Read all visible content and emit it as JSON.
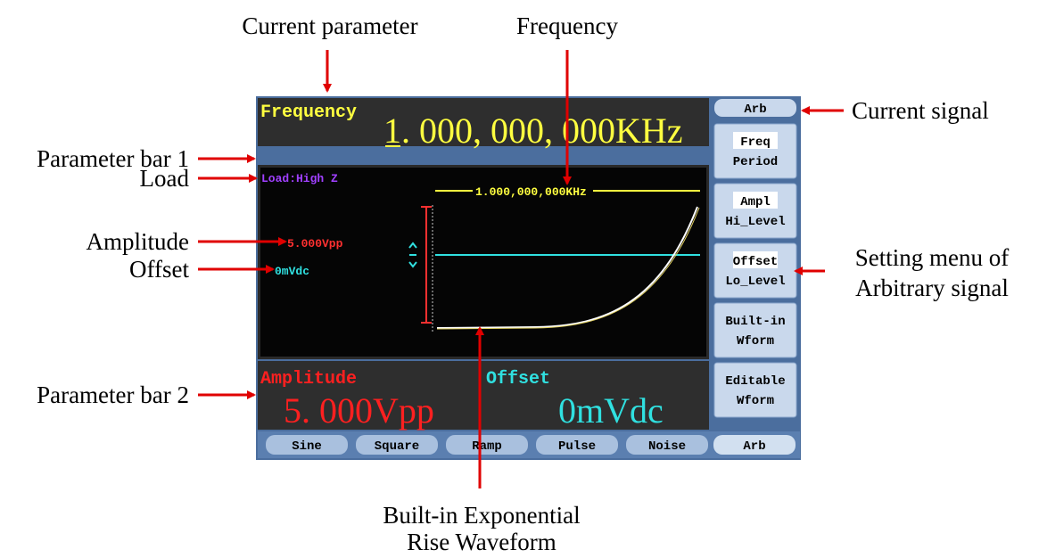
{
  "annotations": {
    "current_parameter": "Current parameter",
    "frequency": "Frequency",
    "parameter_bar_1": "Parameter bar 1",
    "load": "Load",
    "amplitude": "Amplitude",
    "offset": "Offset",
    "parameter_bar_2": "Parameter bar 2",
    "current_signal": "Current signal",
    "setting_menu": [
      "Setting menu of",
      "Arbitrary signal"
    ],
    "waveform": [
      "Built-in Exponential",
      "Rise Waveform"
    ]
  },
  "screen": {
    "parameter_bar_1": {
      "label": "Frequency",
      "value": "1. 000, 000, 000KHz"
    },
    "load": "Load:High Z",
    "wave": {
      "frequency": "1.000,000,000KHz",
      "amplitude": "5.000Vpp",
      "offset": "0mVdc"
    },
    "parameter_bar_2": {
      "amplitude_label": "Amplitude",
      "amplitude_value": "5. 000Vpp",
      "offset_label": "Offset",
      "offset_value": "0mVdc"
    },
    "current_signal": "Arb",
    "menu": [
      [
        "Freq",
        "Period"
      ],
      [
        "Ampl",
        "Hi_Level"
      ],
      [
        "Offset",
        "Lo_Level"
      ],
      [
        "Built-in",
        "Wform"
      ],
      [
        "Editable",
        "Wform"
      ]
    ],
    "tabs": [
      "Sine",
      "Square",
      "Ramp",
      "Pulse",
      "Noise",
      "Arb"
    ]
  }
}
